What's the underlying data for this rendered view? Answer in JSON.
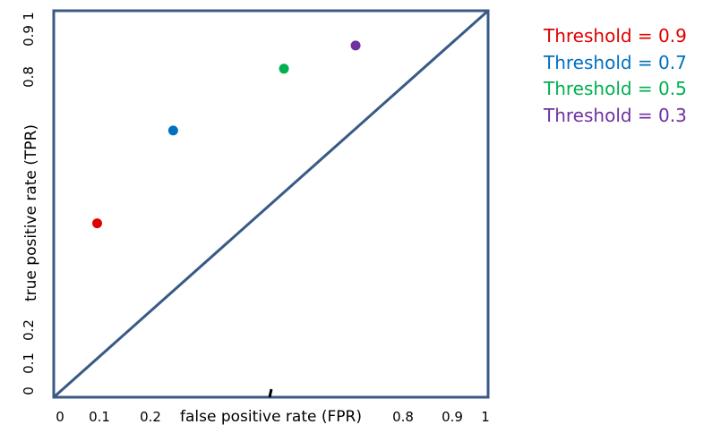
{
  "chart_data": {
    "type": "scatter",
    "xlabel": "false positive rate (FPR)",
    "ylabel": "true positive rate (TPR)",
    "xlim": [
      0,
      1
    ],
    "ylim": [
      0,
      1
    ],
    "x_tick_labels": [
      "0",
      "0.1",
      "0.2",
      "0.8",
      "0.9",
      "1"
    ],
    "y_tick_labels": [
      "0",
      "0.1",
      "0.2",
      "0.8",
      "0.9",
      "1"
    ],
    "grid": false,
    "legend_position": "right",
    "reference_line": {
      "x": [
        0,
        1
      ],
      "y": [
        0,
        1
      ],
      "color": "#3a5a86"
    },
    "series": [
      {
        "name": "Threshold = 0.9",
        "color": "#e00000",
        "x": [
          0.1
        ],
        "y": [
          0.45
        ]
      },
      {
        "name": "Threshold = 0.7",
        "color": "#0070c0",
        "x": [
          0.275
        ],
        "y": [
          0.69
        ]
      },
      {
        "name": "Threshold = 0.5",
        "color": "#00b050",
        "x": [
          0.53
        ],
        "y": [
          0.85
        ]
      },
      {
        "name": "Threshold = 0.3",
        "color": "#7030a0",
        "x": [
          0.695
        ],
        "y": [
          0.91
        ]
      }
    ]
  }
}
